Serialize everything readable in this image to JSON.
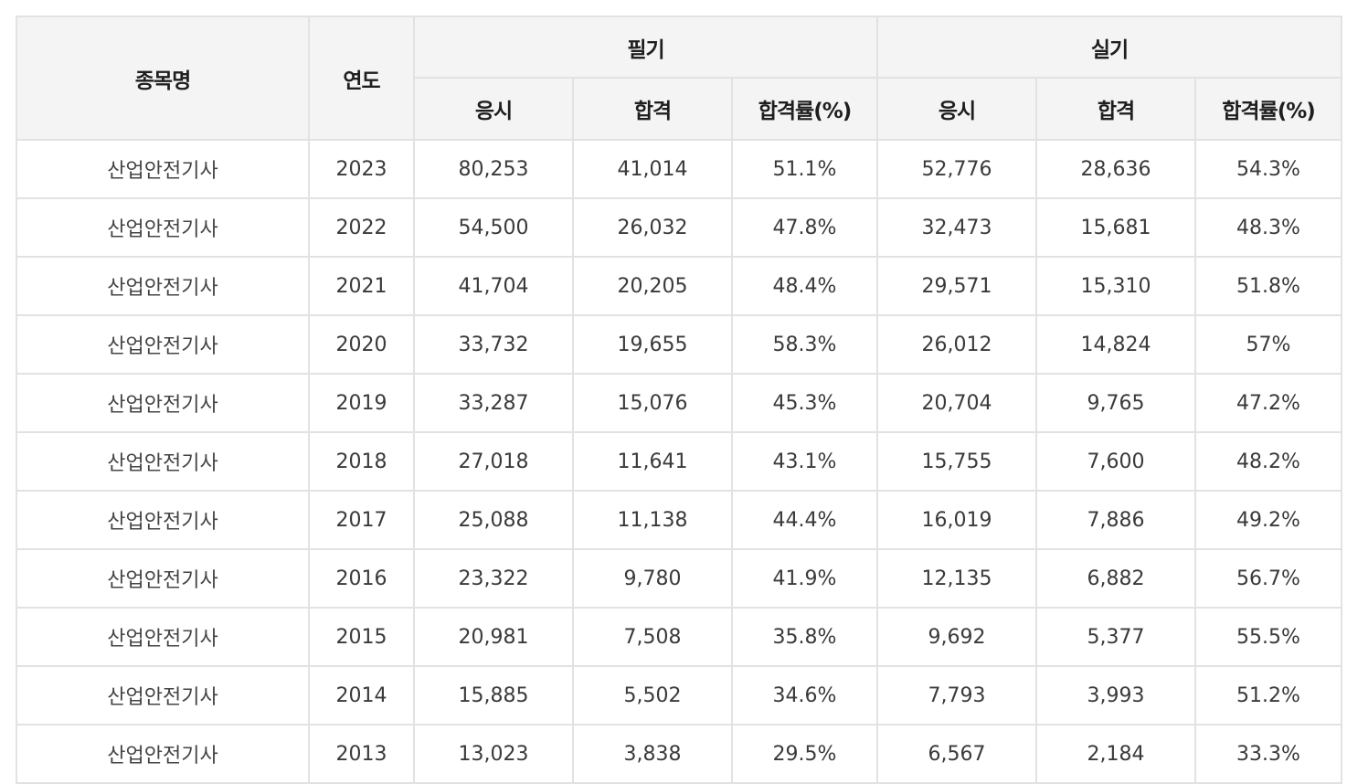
{
  "header": {
    "subject": "종목명",
    "year": "연도",
    "written": "필기",
    "practical": "실기",
    "applicants": "응시",
    "passed": "합격",
    "pass_rate": "합격률(%)"
  },
  "rows": [
    {
      "subject": "산업안전기사",
      "year": "2023",
      "w_apply": "80,253",
      "w_pass": "41,014",
      "w_rate": "51.1%",
      "p_apply": "52,776",
      "p_pass": "28,636",
      "p_rate": "54.3%"
    },
    {
      "subject": "산업안전기사",
      "year": "2022",
      "w_apply": "54,500",
      "w_pass": "26,032",
      "w_rate": "47.8%",
      "p_apply": "32,473",
      "p_pass": "15,681",
      "p_rate": "48.3%"
    },
    {
      "subject": "산업안전기사",
      "year": "2021",
      "w_apply": "41,704",
      "w_pass": "20,205",
      "w_rate": "48.4%",
      "p_apply": "29,571",
      "p_pass": "15,310",
      "p_rate": "51.8%"
    },
    {
      "subject": "산업안전기사",
      "year": "2020",
      "w_apply": "33,732",
      "w_pass": "19,655",
      "w_rate": "58.3%",
      "p_apply": "26,012",
      "p_pass": "14,824",
      "p_rate": "57%"
    },
    {
      "subject": "산업안전기사",
      "year": "2019",
      "w_apply": "33,287",
      "w_pass": "15,076",
      "w_rate": "45.3%",
      "p_apply": "20,704",
      "p_pass": "9,765",
      "p_rate": "47.2%"
    },
    {
      "subject": "산업안전기사",
      "year": "2018",
      "w_apply": "27,018",
      "w_pass": "11,641",
      "w_rate": "43.1%",
      "p_apply": "15,755",
      "p_pass": "7,600",
      "p_rate": "48.2%"
    },
    {
      "subject": "산업안전기사",
      "year": "2017",
      "w_apply": "25,088",
      "w_pass": "11,138",
      "w_rate": "44.4%",
      "p_apply": "16,019",
      "p_pass": "7,886",
      "p_rate": "49.2%"
    },
    {
      "subject": "산업안전기사",
      "year": "2016",
      "w_apply": "23,322",
      "w_pass": "9,780",
      "w_rate": "41.9%",
      "p_apply": "12,135",
      "p_pass": "6,882",
      "p_rate": "56.7%"
    },
    {
      "subject": "산업안전기사",
      "year": "2015",
      "w_apply": "20,981",
      "w_pass": "7,508",
      "w_rate": "35.8%",
      "p_apply": "9,692",
      "p_pass": "5,377",
      "p_rate": "55.5%"
    },
    {
      "subject": "산업안전기사",
      "year": "2014",
      "w_apply": "15,885",
      "w_pass": "5,502",
      "w_rate": "34.6%",
      "p_apply": "7,793",
      "p_pass": "3,993",
      "p_rate": "51.2%"
    },
    {
      "subject": "산업안전기사",
      "year": "2013",
      "w_apply": "13,023",
      "w_pass": "3,838",
      "w_rate": "29.5%",
      "p_apply": "6,567",
      "p_pass": "2,184",
      "p_rate": "33.3%"
    }
  ]
}
